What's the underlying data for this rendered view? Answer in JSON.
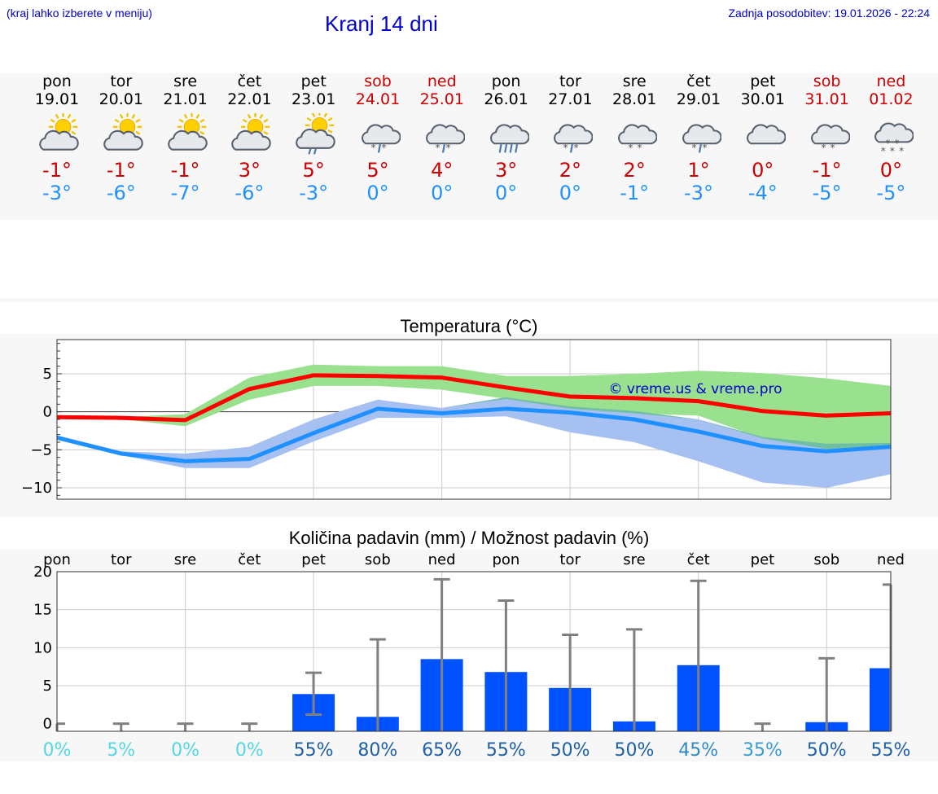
{
  "header": {
    "menu_hint": "(kraj lahko izberete v meniju)",
    "title": "Kranj 14 dni",
    "updated": "Zadnja posodobitev: 19.01.2026 - 22:24"
  },
  "days": [
    {
      "name": "pon",
      "date": "19.01",
      "weekend": false,
      "icon": "sun-cloud-icon",
      "tmax": "-1°",
      "tmin": "-3°"
    },
    {
      "name": "tor",
      "date": "20.01",
      "weekend": false,
      "icon": "sun-cloud-icon",
      "tmax": "-1°",
      "tmin": "-6°"
    },
    {
      "name": "sre",
      "date": "21.01",
      "weekend": false,
      "icon": "sun-cloud-icon",
      "tmax": "-1°",
      "tmin": "-7°"
    },
    {
      "name": "čet",
      "date": "22.01",
      "weekend": false,
      "icon": "sun-cloud-icon",
      "tmax": "3°",
      "tmin": "-6°"
    },
    {
      "name": "pet",
      "date": "23.01",
      "weekend": false,
      "icon": "sun-cloud-rain-icon",
      "tmax": "5°",
      "tmin": "-3°"
    },
    {
      "name": "sob",
      "date": "24.01",
      "weekend": true,
      "icon": "cloud-sleet-icon",
      "tmax": "5°",
      "tmin": "0°"
    },
    {
      "name": "ned",
      "date": "25.01",
      "weekend": true,
      "icon": "cloud-sleet-icon",
      "tmax": "4°",
      "tmin": "0°"
    },
    {
      "name": "pon",
      "date": "26.01",
      "weekend": false,
      "icon": "cloud-heavy-rain-icon",
      "tmax": "3°",
      "tmin": "0°"
    },
    {
      "name": "tor",
      "date": "27.01",
      "weekend": false,
      "icon": "cloud-sleet-icon",
      "tmax": "2°",
      "tmin": "0°"
    },
    {
      "name": "sre",
      "date": "28.01",
      "weekend": false,
      "icon": "cloud-snow-icon",
      "tmax": "2°",
      "tmin": "-1°"
    },
    {
      "name": "čet",
      "date": "29.01",
      "weekend": false,
      "icon": "cloud-sleet-icon",
      "tmax": "1°",
      "tmin": "-3°"
    },
    {
      "name": "pet",
      "date": "30.01",
      "weekend": false,
      "icon": "cloud-icon",
      "tmax": "0°",
      "tmin": "-4°"
    },
    {
      "name": "sob",
      "date": "31.01",
      "weekend": true,
      "icon": "cloud-snow-icon",
      "tmax": "-1°",
      "tmin": "-5°"
    },
    {
      "name": "ned",
      "date": "01.02",
      "weekend": true,
      "icon": "cloud-heavy-snow-icon",
      "tmax": "0°",
      "tmin": "-5°"
    }
  ],
  "temp_chart": {
    "title": "Temperatura (°C)",
    "watermark": "© vreme.us & vreme.pro",
    "colors": {
      "max": "#ff0000",
      "min": "#1e90ff",
      "max_band": "#99e08f",
      "min_band": "#a6c0f2",
      "overlap": "#6fbfa3"
    }
  },
  "precip_chart": {
    "title": "Količina padavin (mm) / Možnost padavin (%)",
    "bar_color": "#0052ff",
    "whisker_color": "#808080"
  },
  "chart_data": [
    {
      "type": "line",
      "title": "Temperatura (°C)",
      "x": [
        0,
        1,
        2,
        3,
        4,
        5,
        6,
        7,
        8,
        9,
        10,
        11,
        12,
        13
      ],
      "ylim": [
        -11.5,
        9.5
      ],
      "yticks": [
        5,
        0,
        -5,
        -10
      ],
      "ytick_labels": [
        "5",
        "0",
        "−5",
        "−10"
      ],
      "grid": true,
      "series": [
        {
          "name": "max",
          "values": [
            -0.7,
            -0.8,
            -1.1,
            3.0,
            4.8,
            4.7,
            4.5,
            3.2,
            2.0,
            1.8,
            1.4,
            0.1,
            -0.5,
            -0.2
          ]
        },
        {
          "name": "min",
          "values": [
            -3.4,
            -5.5,
            -6.5,
            -6.2,
            -2.8,
            0.4,
            -0.2,
            0.4,
            -0.1,
            -1.0,
            -2.6,
            -4.5,
            -5.2,
            -4.6
          ]
        },
        {
          "name": "max_upper",
          "values": [
            -0.6,
            -0.7,
            -0.3,
            4.5,
            6.2,
            6.0,
            6.0,
            4.7,
            4.7,
            5.0,
            5.4,
            5.1,
            4.4,
            3.4
          ]
        },
        {
          "name": "max_lower",
          "values": [
            -0.8,
            -1.0,
            -1.9,
            1.6,
            3.4,
            3.4,
            2.9,
            1.7,
            0.4,
            -0.2,
            -0.5,
            -3.5,
            -4.9,
            -4.7
          ]
        },
        {
          "name": "min_upper",
          "values": [
            -3.1,
            -5.2,
            -5.5,
            -4.6,
            -1.0,
            1.6,
            0.5,
            1.9,
            0.7,
            0.1,
            -1.0,
            -3.3,
            -4.2,
            -4.1
          ]
        },
        {
          "name": "min_lower",
          "values": [
            -3.6,
            -5.7,
            -7.4,
            -7.4,
            -3.9,
            -0.8,
            -0.8,
            -0.6,
            -2.7,
            -4.0,
            -6.5,
            -9.3,
            -10.0,
            -8.2
          ]
        }
      ]
    },
    {
      "type": "bar",
      "title": "Količina padavin (mm) / Možnost padavin (%)",
      "categories": [
        "pon",
        "tor",
        "sre",
        "čet",
        "pet",
        "sob",
        "ned",
        "pon",
        "tor",
        "sre",
        "čet",
        "pet",
        "sob",
        "ned"
      ],
      "ylim": [
        -1,
        20
      ],
      "yticks": [
        20,
        15,
        10,
        5,
        0
      ],
      "grid": true,
      "series": [
        {
          "name": "Količina padavin (mm)",
          "values": [
            0,
            0,
            0,
            0,
            3.9,
            0.9,
            8.5,
            6.8,
            4.7,
            0.3,
            7.7,
            0,
            0.2,
            7.3
          ]
        },
        {
          "name": "min",
          "values": [
            0,
            0,
            0,
            0,
            1.2,
            0,
            0,
            0,
            0,
            0,
            0,
            0,
            0,
            0
          ]
        },
        {
          "name": "max",
          "values": [
            0,
            0,
            0,
            0,
            6.7,
            11.1,
            19.0,
            16.2,
            11.7,
            12.4,
            18.8,
            0,
            8.6,
            18.3
          ]
        }
      ],
      "probability": [
        "0%",
        "5%",
        "0%",
        "0%",
        "55%",
        "80%",
        "65%",
        "55%",
        "50%",
        "50%",
        "45%",
        "35%",
        "50%",
        "55%"
      ]
    }
  ]
}
